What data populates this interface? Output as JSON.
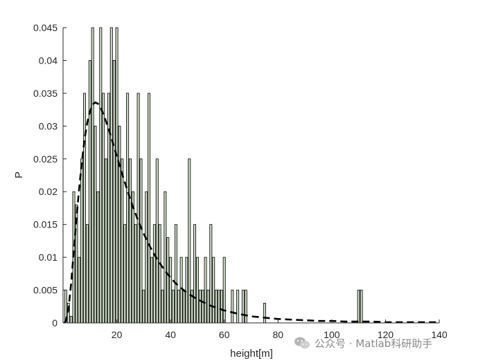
{
  "chart_data": {
    "type": "bar",
    "xlabel": "height[m]",
    "ylabel": "P",
    "xlim": [
      0,
      140
    ],
    "ylim": [
      0,
      0.045
    ],
    "xticks": [
      "20",
      "40",
      "60",
      "80",
      "100",
      "120",
      "140"
    ],
    "xtick_values": [
      20,
      40,
      60,
      80,
      100,
      120,
      140
    ],
    "yticks": [
      "0",
      "0.005",
      "0.01",
      "0.015",
      "0.02",
      "0.025",
      "0.03",
      "0.035",
      "0.04",
      "0.045"
    ],
    "ytick_values": [
      0,
      0.005,
      0.01,
      0.015,
      0.02,
      0.025,
      0.03,
      0.035,
      0.04,
      0.045
    ],
    "bar_color": "#c9d7c2",
    "bar_edge_color": "#000000",
    "histogram": {
      "x": [
        1,
        2,
        3,
        4,
        5,
        6,
        7,
        8,
        9,
        10,
        11,
        12,
        13,
        14,
        15,
        16,
        17,
        18,
        19,
        20,
        21,
        22,
        23,
        24,
        25,
        26,
        27,
        28,
        29,
        30,
        31,
        32,
        33,
        34,
        35,
        36,
        37,
        38,
        39,
        40,
        41,
        42,
        43,
        44,
        45,
        46,
        47,
        48,
        49,
        50,
        51,
        52,
        53,
        54,
        55,
        56,
        57,
        58,
        59,
        60,
        63,
        65,
        67,
        68,
        75,
        110,
        111
      ],
      "values": [
        0.005,
        0.003,
        0.001,
        0.02,
        0.018,
        0.01,
        0.025,
        0.035,
        0.015,
        0.04,
        0.045,
        0.03,
        0.02,
        0.045,
        0.035,
        0.025,
        0.035,
        0.045,
        0.04,
        0.045,
        0.03,
        0.025,
        0.015,
        0.035,
        0.025,
        0.02,
        0.015,
        0.035,
        0.025,
        0.005,
        0.02,
        0.035,
        0.01,
        0.015,
        0.025,
        0.015,
        0.005,
        0.02,
        0.013,
        0.01,
        0.005,
        0.015,
        0.005,
        0.01,
        0.005,
        0.01,
        0.025,
        0.005,
        0.015,
        0.01,
        0.005,
        0.005,
        0.01,
        0.005,
        0.015,
        0.01,
        0.005,
        0.005,
        0.005,
        0.01,
        0.005,
        0.005,
        0.005,
        0.005,
        0.003,
        0.005,
        0.005
      ]
    },
    "fit_curve": {
      "style": "dashed",
      "color": "#000000",
      "x": [
        0.5,
        1,
        2,
        3,
        4,
        5,
        6,
        7,
        8,
        9,
        10,
        11,
        12,
        13,
        14,
        15,
        16,
        17,
        18,
        19,
        20,
        22,
        24,
        26,
        28,
        30,
        32,
        34,
        36,
        38,
        40,
        42,
        44,
        46,
        48,
        50,
        55,
        60,
        65,
        70,
        75,
        80,
        85,
        90,
        95,
        100,
        105,
        110,
        115,
        120,
        125,
        130,
        135,
        140
      ],
      "y": [
        0,
        0.0003,
        0.002,
        0.006,
        0.011,
        0.016,
        0.0205,
        0.0245,
        0.028,
        0.0305,
        0.0322,
        0.0333,
        0.0336,
        0.0334,
        0.0328,
        0.0318,
        0.0307,
        0.0295,
        0.0282,
        0.0268,
        0.0254,
        0.0227,
        0.0201,
        0.0177,
        0.0155,
        0.0136,
        0.0119,
        0.0104,
        0.0091,
        0.0079,
        0.0069,
        0.006,
        0.0053,
        0.0046,
        0.0041,
        0.0036,
        0.0026,
        0.0019,
        0.0014,
        0.001,
        0.0008,
        0.0006,
        0.0005,
        0.0004,
        0.0003,
        0.0003,
        0.0002,
        0.0002,
        0.0002,
        0.0001,
        0.0001,
        0.0001,
        0.0001,
        0.0001
      ]
    }
  },
  "watermark": {
    "text": "公众号 · Matlab科研助手",
    "icon": "wechat-icon"
  }
}
